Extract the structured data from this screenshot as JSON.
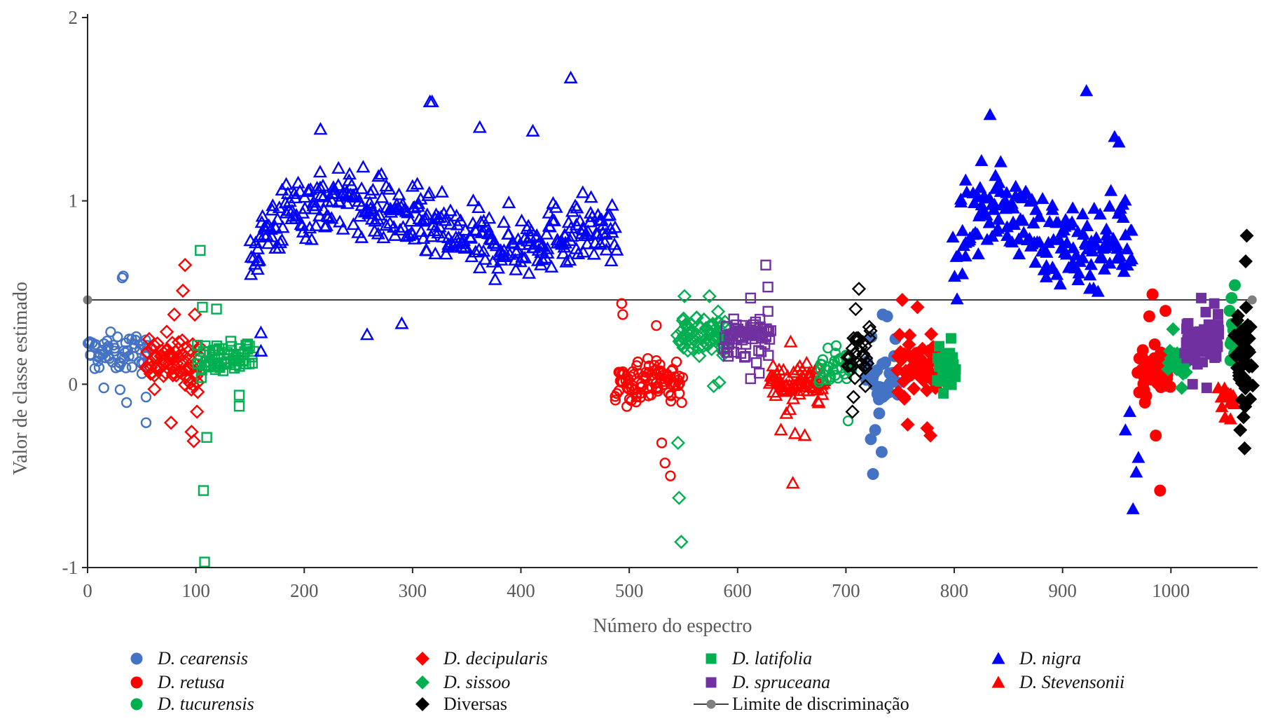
{
  "chart_data": {
    "type": "scatter",
    "title": "",
    "xlabel": "Número do espectro",
    "ylabel": "Valor de classe estimado",
    "xlim": [
      0,
      1080
    ],
    "ylim": [
      -1,
      2
    ],
    "x_ticks": [
      "0",
      "100",
      "200",
      "300",
      "400",
      "500",
      "600",
      "700",
      "800",
      "900",
      "1000"
    ],
    "y_ticks": [
      "-1",
      "0",
      "1",
      "2"
    ],
    "grid": false,
    "legend_position": "bottom",
    "threshold": {
      "name": "Limite de discriminação",
      "y": 0.46,
      "x": [
        0,
        1075
      ],
      "color": "#808080"
    },
    "series": [
      {
        "name": "D. cearensis",
        "italic": true,
        "color": "#4472C4",
        "marker": "circle",
        "groups": [
          {
            "x": [
              0,
              56
            ],
            "center": 0.17,
            "spread": 0.1,
            "count": 60,
            "open": true,
            "extra": [
              [
                32,
                0.58
              ],
              [
                33,
                0.59
              ],
              [
                15,
                -0.02
              ],
              [
                30,
                -0.03
              ],
              [
                36,
                -0.1
              ],
              [
                54,
                -0.07
              ],
              [
                54,
                -0.21
              ]
            ]
          },
          {
            "x": [
              718,
              748
            ],
            "center": 0.05,
            "spread": 0.18,
            "count": 30,
            "open": false,
            "extra": [
              [
                734,
                0.38
              ],
              [
                738,
                0.37
              ],
              [
                723,
                -0.3
              ],
              [
                727,
                -0.25
              ],
              [
                733,
                -0.37
              ],
              [
                725,
                -0.49
              ]
            ]
          }
        ]
      },
      {
        "name": "D. decipularis",
        "italic": true,
        "color": "#FF0000",
        "marker": "diamond",
        "groups": [
          {
            "x": [
              55,
              103
            ],
            "center": 0.12,
            "spread": 0.14,
            "count": 75,
            "open": true,
            "extra": [
              [
                90,
                0.65
              ],
              [
                88,
                0.51
              ],
              [
                80,
                0.38
              ],
              [
                99,
                0.38
              ],
              [
                77,
                -0.21
              ],
              [
                98,
                -0.31
              ],
              [
                96,
                -0.26
              ],
              [
                101,
                -0.15
              ]
            ]
          },
          {
            "x": [
              748,
              785
            ],
            "center": 0.1,
            "spread": 0.16,
            "count": 60,
            "open": false,
            "extra": [
              [
                752,
                0.46
              ],
              [
                766,
                0.42
              ],
              [
                778,
                -0.28
              ],
              [
                757,
                -0.22
              ],
              [
                775,
                -0.24
              ]
            ]
          }
        ]
      },
      {
        "name": "D. latifolia",
        "italic": true,
        "color": "#00B050",
        "marker": "square",
        "groups": [
          {
            "x": [
              102,
              152
            ],
            "center": 0.15,
            "spread": 0.1,
            "count": 60,
            "open": true,
            "extra": [
              [
                104,
                0.73
              ],
              [
                106,
                0.42
              ],
              [
                119,
                0.41
              ],
              [
                107,
                -0.58
              ],
              [
                110,
                -0.29
              ],
              [
                108,
                -0.97
              ],
              [
                140,
                -0.12
              ],
              [
                140,
                -0.06
              ]
            ]
          },
          {
            "x": [
              785,
              800
            ],
            "center": 0.1,
            "spread": 0.08,
            "count": 40,
            "open": false,
            "extra": [
              [
                790,
                -0.05
              ],
              [
                797,
                0.25
              ]
            ]
          }
        ]
      },
      {
        "name": "D. nigra",
        "italic": true,
        "color": "#0000FF",
        "marker": "triangle",
        "groups": [
          {
            "x": [
              150,
              488
            ],
            "center": 0.88,
            "spread": 0.18,
            "count": 360,
            "open": true,
            "wave": true,
            "extra": [
              [
                446,
                1.67
              ],
              [
                316,
                1.54
              ],
              [
                318,
                1.54
              ],
              [
                362,
                1.4
              ],
              [
                215,
                1.39
              ],
              [
                411,
                1.38
              ],
              [
                258,
                0.27
              ],
              [
                290,
                0.33
              ],
              [
                160,
                0.18
              ],
              [
                160,
                0.28
              ]
            ]
          },
          {
            "x": [
              800,
              965
            ],
            "center": 0.85,
            "spread": 0.22,
            "count": 175,
            "open": false,
            "wave": true,
            "extra": [
              [
                922,
                1.6
              ],
              [
                833,
                1.47
              ],
              [
                948,
                1.35
              ],
              [
                952,
                1.32
              ],
              [
                965,
                -0.68
              ],
              [
                968,
                -0.48
              ],
              [
                970,
                -0.4
              ],
              [
                958,
                -0.25
              ],
              [
                962,
                -0.15
              ]
            ]
          }
        ]
      },
      {
        "name": "D. retusa",
        "italic": true,
        "color": "#FF0000",
        "marker": "circle",
        "groups": [
          {
            "x": [
              488,
              548
            ],
            "center": 0.02,
            "spread": 0.14,
            "count": 90,
            "open": true,
            "extra": [
              [
                493,
                0.44
              ],
              [
                494,
                0.38
              ],
              [
                525,
                0.32
              ],
              [
                533,
                -0.43
              ],
              [
                538,
                -0.5
              ],
              [
                530,
                -0.32
              ]
            ]
          },
          {
            "x": [
              970,
              998
            ],
            "center": 0.08,
            "spread": 0.14,
            "count": 45,
            "open": false,
            "extra": [
              [
                983,
                0.49
              ],
              [
                995,
                0.4
              ],
              [
                980,
                0.37
              ],
              [
                990,
                -0.58
              ],
              [
                986,
                -0.28
              ],
              [
                976,
                -0.1
              ]
            ]
          }
        ]
      },
      {
        "name": "D. sissoo",
        "italic": true,
        "color": "#00B050",
        "marker": "diamond",
        "groups": [
          {
            "x": [
              545,
              590
            ],
            "center": 0.27,
            "spread": 0.11,
            "count": 70,
            "open": true,
            "extra": [
              [
                545,
                -0.32
              ],
              [
                546,
                -0.62
              ],
              [
                548,
                -0.86
              ],
              [
                551,
                0.48
              ],
              [
                574,
                0.48
              ],
              [
                578,
                -0.01
              ],
              [
                583,
                0.01
              ]
            ]
          },
          {
            "x": [
              998,
              1015
            ],
            "center": 0.12,
            "spread": 0.07,
            "count": 40,
            "open": false,
            "extra": [
              [
                1002,
                0.3
              ],
              [
                1010,
                -0.02
              ]
            ]
          }
        ]
      },
      {
        "name": "D. spruceana",
        "italic": true,
        "color": "#7030A0",
        "marker": "square",
        "groups": [
          {
            "x": [
              588,
              630
            ],
            "center": 0.25,
            "spread": 0.1,
            "count": 65,
            "open": true,
            "extra": [
              [
                626,
                0.65
              ],
              [
                628,
                0.53
              ],
              [
                612,
                0.47
              ],
              [
                612,
                0.03
              ],
              [
                620,
                0.06
              ]
            ]
          },
          {
            "x": [
              1013,
              1045
            ],
            "center": 0.24,
            "spread": 0.11,
            "count": 60,
            "open": false,
            "extra": [
              [
                1028,
                0.47
              ],
              [
                1040,
                0.44
              ],
              [
                1020,
                0.0
              ],
              [
                1033,
                -0.02
              ]
            ]
          }
        ]
      },
      {
        "name": "D. Stevensonii",
        "italic": true,
        "color": "#FF0000",
        "marker": "triangle",
        "groups": [
          {
            "x": [
              630,
              680
            ],
            "center": 0.0,
            "spread": 0.11,
            "count": 70,
            "open": true,
            "extra": [
              [
                651,
                -0.54
              ],
              [
                640,
                -0.25
              ],
              [
                653,
                -0.27
              ],
              [
                662,
                -0.28
              ],
              [
                645,
                -0.16
              ],
              [
                649,
                0.23
              ]
            ]
          },
          {
            "x": [
              1045,
              1060
            ],
            "center": -0.05,
            "spread": 0.06,
            "count": 12,
            "open": false,
            "extra": [
              [
                1050,
                -0.18
              ],
              [
                1055,
                -0.19
              ]
            ]
          }
        ]
      },
      {
        "name": "D. tucurensis",
        "italic": true,
        "color": "#00B050",
        "marker": "circle",
        "groups": [
          {
            "x": [
              675,
              705
            ],
            "center": 0.1,
            "spread": 0.08,
            "count": 35,
            "open": true,
            "extra": [
              [
                702,
                -0.2
              ],
              [
                691,
                0.21
              ]
            ]
          },
          {
            "x": [
              1055,
              1062
            ],
            "center": 0.3,
            "spread": 0.12,
            "count": 10,
            "open": false,
            "extra": [
              [
                1059,
                0.54
              ],
              [
                1056,
                0.47
              ],
              [
                1055,
                0.22
              ],
              [
                1055,
                0.13
              ]
            ]
          }
        ]
      },
      {
        "name": "Diversas",
        "italic": false,
        "color": "#000000",
        "marker": "diamond",
        "groups": [
          {
            "x": [
              702,
              722
            ],
            "center": 0.2,
            "spread": 0.14,
            "count": 30,
            "open": true,
            "extra": [
              [
                712,
                0.52
              ],
              [
                709,
                0.41
              ],
              [
                706,
                -0.15
              ],
              [
                707,
                -0.07
              ],
              [
                718,
                -0.01
              ]
            ]
          },
          {
            "x": [
              1060,
              1075
            ],
            "center": 0.15,
            "spread": 0.28,
            "count": 40,
            "open": false,
            "extra": [
              [
                1070,
                0.81
              ],
              [
                1069,
                0.67
              ],
              [
                1068,
                -0.35
              ],
              [
                1064,
                -0.25
              ],
              [
                1067,
                -0.18
              ]
            ]
          }
        ]
      }
    ]
  }
}
